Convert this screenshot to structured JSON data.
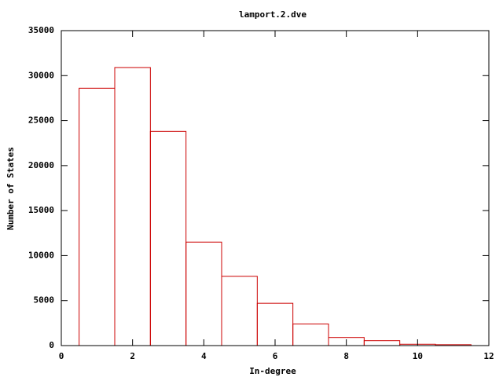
{
  "chart_data": {
    "type": "histogram",
    "title": "lamport.2.dve",
    "x_label": "In-degree",
    "y_label": "Number of States",
    "bins": [
      0.5,
      1.5,
      2.5,
      3.5,
      4.5,
      5.5,
      6.5,
      7.5,
      8.5,
      9.5,
      10.5,
      11.5
    ],
    "values": [
      28600,
      30900,
      23800,
      11500,
      7700,
      4700,
      2400,
      900,
      550,
      150,
      100
    ],
    "color": "#cc0000",
    "xlim": [
      0,
      12
    ],
    "xticks": [
      0,
      2,
      4,
      6,
      8,
      10,
      12
    ],
    "ylim": [
      0,
      35000
    ],
    "yticks": [
      0,
      5000,
      10000,
      15000,
      20000,
      25000,
      30000,
      35000
    ],
    "grid": false
  }
}
